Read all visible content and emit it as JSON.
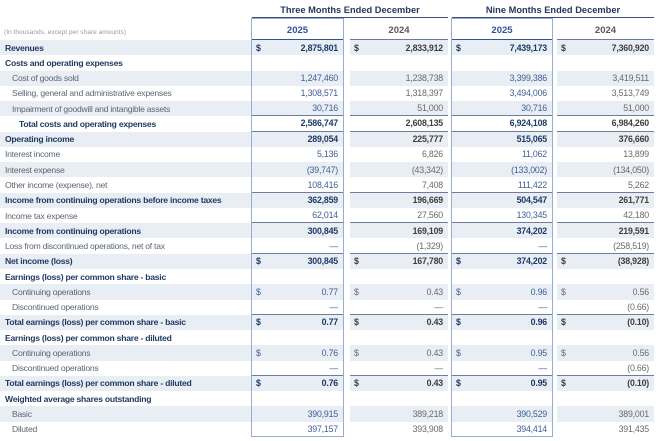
{
  "table": {
    "note": "(In thousands, except per share amounts)",
    "period_headers": [
      "Three Months Ended December",
      "Nine Months Ended December"
    ],
    "columns": [
      {
        "label": "2025",
        "highlight": true
      },
      {
        "label": "2024",
        "highlight": false
      },
      {
        "label": "2025",
        "highlight": true
      },
      {
        "label": "2024",
        "highlight": false
      }
    ],
    "rows": [
      {
        "label": "Revenues",
        "indent": 0,
        "bold": true,
        "dollar": true,
        "rule_below": false,
        "values": [
          "2,875,801",
          "2,833,912",
          "7,439,173",
          "7,360,920"
        ]
      },
      {
        "label": "Costs and operating expenses",
        "indent": 0,
        "bold": true,
        "dollar": false,
        "rule_below": false,
        "values": [
          "",
          "",
          "",
          ""
        ]
      },
      {
        "label": "Cost of goods sold",
        "indent": 1,
        "bold": false,
        "dollar": false,
        "rule_below": false,
        "values": [
          "1,247,460",
          "1,238,738",
          "3,399,386",
          "3,419,511"
        ]
      },
      {
        "label": "Selling, general and administrative expenses",
        "indent": 1,
        "bold": false,
        "dollar": false,
        "rule_below": false,
        "values": [
          "1,308,571",
          "1,318,397",
          "3,494,006",
          "3,513,749"
        ]
      },
      {
        "label": "Impairment of goodwill and intangible assets",
        "indent": 1,
        "bold": false,
        "dollar": false,
        "rule_below": true,
        "values": [
          "30,716",
          "51,000",
          "30,716",
          "51,000"
        ]
      },
      {
        "label": "Total costs and operating expenses",
        "indent": 2,
        "bold": true,
        "dollar": false,
        "rule_below": true,
        "values": [
          "2,586,747",
          "2,608,135",
          "6,924,108",
          "6,984,260"
        ]
      },
      {
        "label": "Operating income",
        "indent": 0,
        "bold": true,
        "dollar": false,
        "rule_below": false,
        "values": [
          "289,054",
          "225,777",
          "515,065",
          "376,660"
        ]
      },
      {
        "label": "Interest income",
        "indent": 0,
        "bold": false,
        "dollar": false,
        "rule_below": false,
        "values": [
          "5,136",
          "6,826",
          "11,062",
          "13,899"
        ]
      },
      {
        "label": "Interest expense",
        "indent": 0,
        "bold": false,
        "dollar": false,
        "rule_below": false,
        "values": [
          "(39,747)",
          "(43,342)",
          "(133,002)",
          "(134,050)"
        ]
      },
      {
        "label": "Other income (expense), net",
        "indent": 0,
        "bold": false,
        "dollar": false,
        "rule_below": true,
        "values": [
          "108,416",
          "7,408",
          "111,422",
          "5,262"
        ]
      },
      {
        "label": "Income from continuing operations before income taxes",
        "indent": 0,
        "bold": true,
        "dollar": false,
        "rule_below": false,
        "values": [
          "362,859",
          "196,669",
          "504,547",
          "261,771"
        ]
      },
      {
        "label": "Income tax expense",
        "indent": 0,
        "bold": false,
        "dollar": false,
        "rule_below": true,
        "values": [
          "62,014",
          "27,560",
          "130,345",
          "42,180"
        ]
      },
      {
        "label": "Income from continuing operations",
        "indent": 0,
        "bold": true,
        "dollar": false,
        "rule_below": false,
        "values": [
          "300,845",
          "169,109",
          "374,202",
          "219,591"
        ]
      },
      {
        "label": "Loss from discontinued operations, net of tax",
        "indent": 0,
        "bold": false,
        "dollar": false,
        "rule_below": true,
        "values": [
          "—",
          "(1,329)",
          "—",
          "(258,519)"
        ]
      },
      {
        "label": "Net income (loss)",
        "indent": 0,
        "bold": true,
        "dollar": true,
        "rule_below": false,
        "values": [
          "300,845",
          "167,780",
          "374,202",
          "(38,928)"
        ]
      },
      {
        "label": "Earnings (loss) per common share - basic",
        "indent": 0,
        "bold": true,
        "dollar": false,
        "rule_below": false,
        "values": [
          "",
          "",
          "",
          ""
        ]
      },
      {
        "label": "Continuing operations",
        "indent": 1,
        "bold": false,
        "dollar": true,
        "rule_below": false,
        "values": [
          "0.77",
          "0.43",
          "0.96",
          "0.56"
        ]
      },
      {
        "label": "Discontinued operations",
        "indent": 1,
        "bold": false,
        "dollar": false,
        "rule_below": true,
        "values": [
          "—",
          "—",
          "—",
          "(0.66)"
        ]
      },
      {
        "label": "Total earnings (loss) per common share - basic",
        "indent": 0,
        "bold": true,
        "dollar": true,
        "rule_below": false,
        "values": [
          "0.77",
          "0.43",
          "0.96",
          "(0.10)"
        ]
      },
      {
        "label": "Earnings (loss) per common share - diluted",
        "indent": 0,
        "bold": true,
        "dollar": false,
        "rule_below": false,
        "values": [
          "",
          "",
          "",
          ""
        ]
      },
      {
        "label": "Continuing operations",
        "indent": 1,
        "bold": false,
        "dollar": true,
        "rule_below": false,
        "values": [
          "0.76",
          "0.43",
          "0.95",
          "0.56"
        ]
      },
      {
        "label": "Discontinued operations",
        "indent": 1,
        "bold": false,
        "dollar": false,
        "rule_below": true,
        "values": [
          "—",
          "—",
          "—",
          "(0.66)"
        ]
      },
      {
        "label": "Total earnings (loss) per common share - diluted",
        "indent": 0,
        "bold": true,
        "dollar": true,
        "rule_below": false,
        "values": [
          "0.76",
          "0.43",
          "0.95",
          "(0.10)"
        ]
      },
      {
        "label": "Weighted average shares outstanding",
        "indent": 0,
        "bold": true,
        "dollar": false,
        "rule_below": false,
        "values": [
          "",
          "",
          "",
          ""
        ]
      },
      {
        "label": "Basic",
        "indent": 1,
        "bold": false,
        "dollar": false,
        "rule_below": false,
        "values": [
          "390,915",
          "389,218",
          "390,529",
          "389,001"
        ]
      },
      {
        "label": "Diluted",
        "indent": 1,
        "bold": false,
        "dollar": false,
        "rule_below": false,
        "values": [
          "397,157",
          "393,908",
          "394,414",
          "391,435"
        ]
      }
    ],
    "currency_symbol": "$",
    "colors": {
      "accent_blue": "#2f5496",
      "navy": "#203a64",
      "gray_text": "#595959",
      "stripe": "#e9edf4",
      "highlight_border": "#93aed6",
      "rule": "#6f7d9c"
    }
  }
}
